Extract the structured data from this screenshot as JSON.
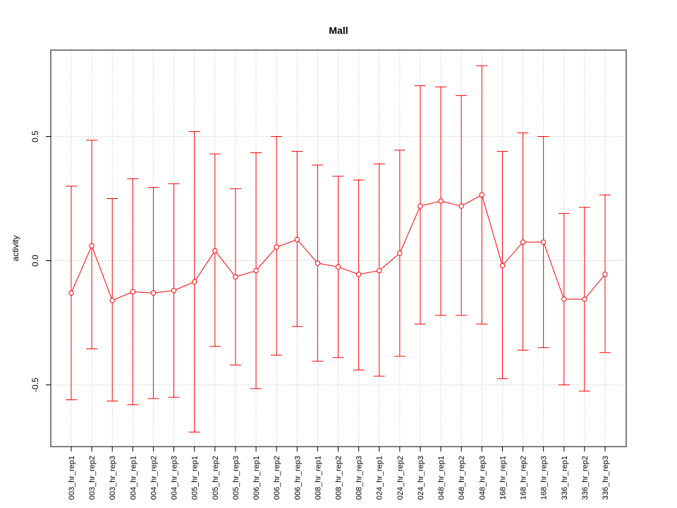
{
  "chart_data": {
    "type": "line",
    "title": "Mall",
    "xlabel": "",
    "ylabel": "activity",
    "ylim": [
      -0.75,
      0.85
    ],
    "yticks": [
      -0.5,
      0.0,
      0.5
    ],
    "ytick_labels": [
      "-0.5",
      "0.0",
      "0.5"
    ],
    "grid": true,
    "categories": [
      "003_hr_rep1",
      "003_hr_rep2",
      "003_hr_rep3",
      "004_hr_rep1",
      "004_hr_rep2",
      "004_hr_rep3",
      "005_hr_rep1",
      "005_hr_rep2",
      "005_hr_rep3",
      "006_hr_rep1",
      "006_hr_rep2",
      "006_hr_rep3",
      "008_hr_rep1",
      "008_hr_rep2",
      "008_hr_rep3",
      "024_hr_rep1",
      "024_hr_rep2",
      "024_hr_rep3",
      "048_hr_rep1",
      "048_hr_rep2",
      "048_hr_rep3",
      "168_hr_rep1",
      "168_hr_rep2",
      "168_hr_rep3",
      "336_hr_rep1",
      "336_hr_rep2",
      "336_hr_rep3"
    ],
    "series": [
      {
        "color": "#ff0000",
        "values": [
          -0.13,
          0.06,
          -0.16,
          -0.125,
          -0.13,
          -0.12,
          -0.085,
          0.04,
          -0.065,
          -0.04,
          0.055,
          0.085,
          -0.01,
          -0.025,
          -0.055,
          -0.04,
          0.03,
          0.22,
          0.24,
          0.22,
          0.265,
          -0.02,
          0.075,
          0.075,
          -0.155,
          -0.155,
          -0.055
        ],
        "upper": [
          0.3,
          0.485,
          0.25,
          0.33,
          0.295,
          0.31,
          0.52,
          0.43,
          0.29,
          0.435,
          0.5,
          0.44,
          0.385,
          0.34,
          0.325,
          0.39,
          0.445,
          0.705,
          0.7,
          0.665,
          0.785,
          0.44,
          0.515,
          0.5,
          0.19,
          0.215,
          0.265
        ],
        "lower": [
          -0.56,
          -0.355,
          -0.565,
          -0.58,
          -0.555,
          -0.55,
          -0.69,
          -0.345,
          -0.42,
          -0.515,
          -0.38,
          -0.265,
          -0.405,
          -0.39,
          -0.44,
          -0.465,
          -0.385,
          -0.255,
          -0.22,
          -0.22,
          -0.255,
          -0.475,
          -0.36,
          -0.35,
          -0.5,
          -0.525,
          -0.37
        ]
      }
    ]
  }
}
